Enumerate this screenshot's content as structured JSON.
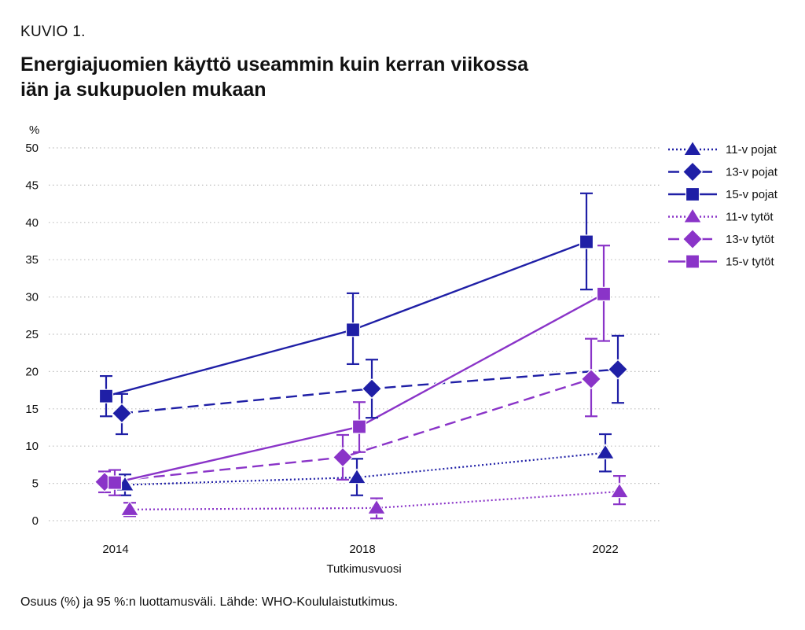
{
  "header": {
    "kicker": "KUVIO 1.",
    "title_line1": "Energiajuomien käyttö useammin kuin kerran viikossa",
    "title_line2": "iän ja sukupuolen mukaan"
  },
  "footer": {
    "note": "Osuus (%) ja 95 %:n luottamusväli. Lähde: WHO-Koululaistutkimus."
  },
  "colors": {
    "boys": "#1f1fa6",
    "girls": "#8a34c8",
    "grid": "#bdbdbd"
  },
  "chart_data": {
    "type": "line",
    "title": "Energiajuomien käyttö useammin kuin kerran viikossa iän ja sukupuolen mukaan",
    "xlabel": "Tutkimusvuosi",
    "ylabel": "%",
    "x": [
      "2014",
      "2018",
      "2022"
    ],
    "ylim": [
      0,
      50
    ],
    "yticks": [
      0,
      5,
      10,
      15,
      20,
      25,
      30,
      35,
      40,
      45,
      50
    ],
    "grid": "horizontal dotted",
    "legend_position": "right",
    "error_bars": "95 % confidence interval",
    "series": [
      {
        "name": "11-v pojat",
        "group": "boys",
        "marker": "triangle",
        "line": "dotted",
        "values": [
          4.8,
          5.8,
          9.1
        ],
        "lower": [
          3.4,
          3.4,
          6.6
        ],
        "upper": [
          6.2,
          8.3,
          11.6
        ]
      },
      {
        "name": "13-v pojat",
        "group": "boys",
        "marker": "diamond",
        "line": "dashed",
        "values": [
          14.4,
          17.7,
          20.3
        ],
        "lower": [
          11.6,
          13.8,
          15.8
        ],
        "upper": [
          17.0,
          21.6,
          24.8
        ]
      },
      {
        "name": "15-v pojat",
        "group": "boys",
        "marker": "square",
        "line": "solid",
        "values": [
          16.7,
          25.6,
          37.4
        ],
        "lower": [
          14.0,
          21.0,
          31.0
        ],
        "upper": [
          19.4,
          30.5,
          43.9
        ]
      },
      {
        "name": "11-v tytöt",
        "group": "girls",
        "marker": "triangle",
        "line": "dotted",
        "values": [
          1.5,
          1.7,
          3.9
        ],
        "lower": [
          0.6,
          0.3,
          2.2
        ],
        "upper": [
          2.4,
          3.0,
          6.0
        ]
      },
      {
        "name": "13-v tytöt",
        "group": "girls",
        "marker": "diamond",
        "line": "dashed",
        "values": [
          5.2,
          8.5,
          19.0
        ],
        "lower": [
          3.8,
          5.5,
          14.0
        ],
        "upper": [
          6.6,
          11.5,
          24.4
        ]
      },
      {
        "name": "15-v tytöt",
        "group": "girls",
        "marker": "square",
        "line": "solid",
        "values": [
          5.1,
          12.6,
          30.4
        ],
        "lower": [
          3.4,
          9.2,
          24.1
        ],
        "upper": [
          6.8,
          15.9,
          36.9
        ]
      }
    ]
  }
}
